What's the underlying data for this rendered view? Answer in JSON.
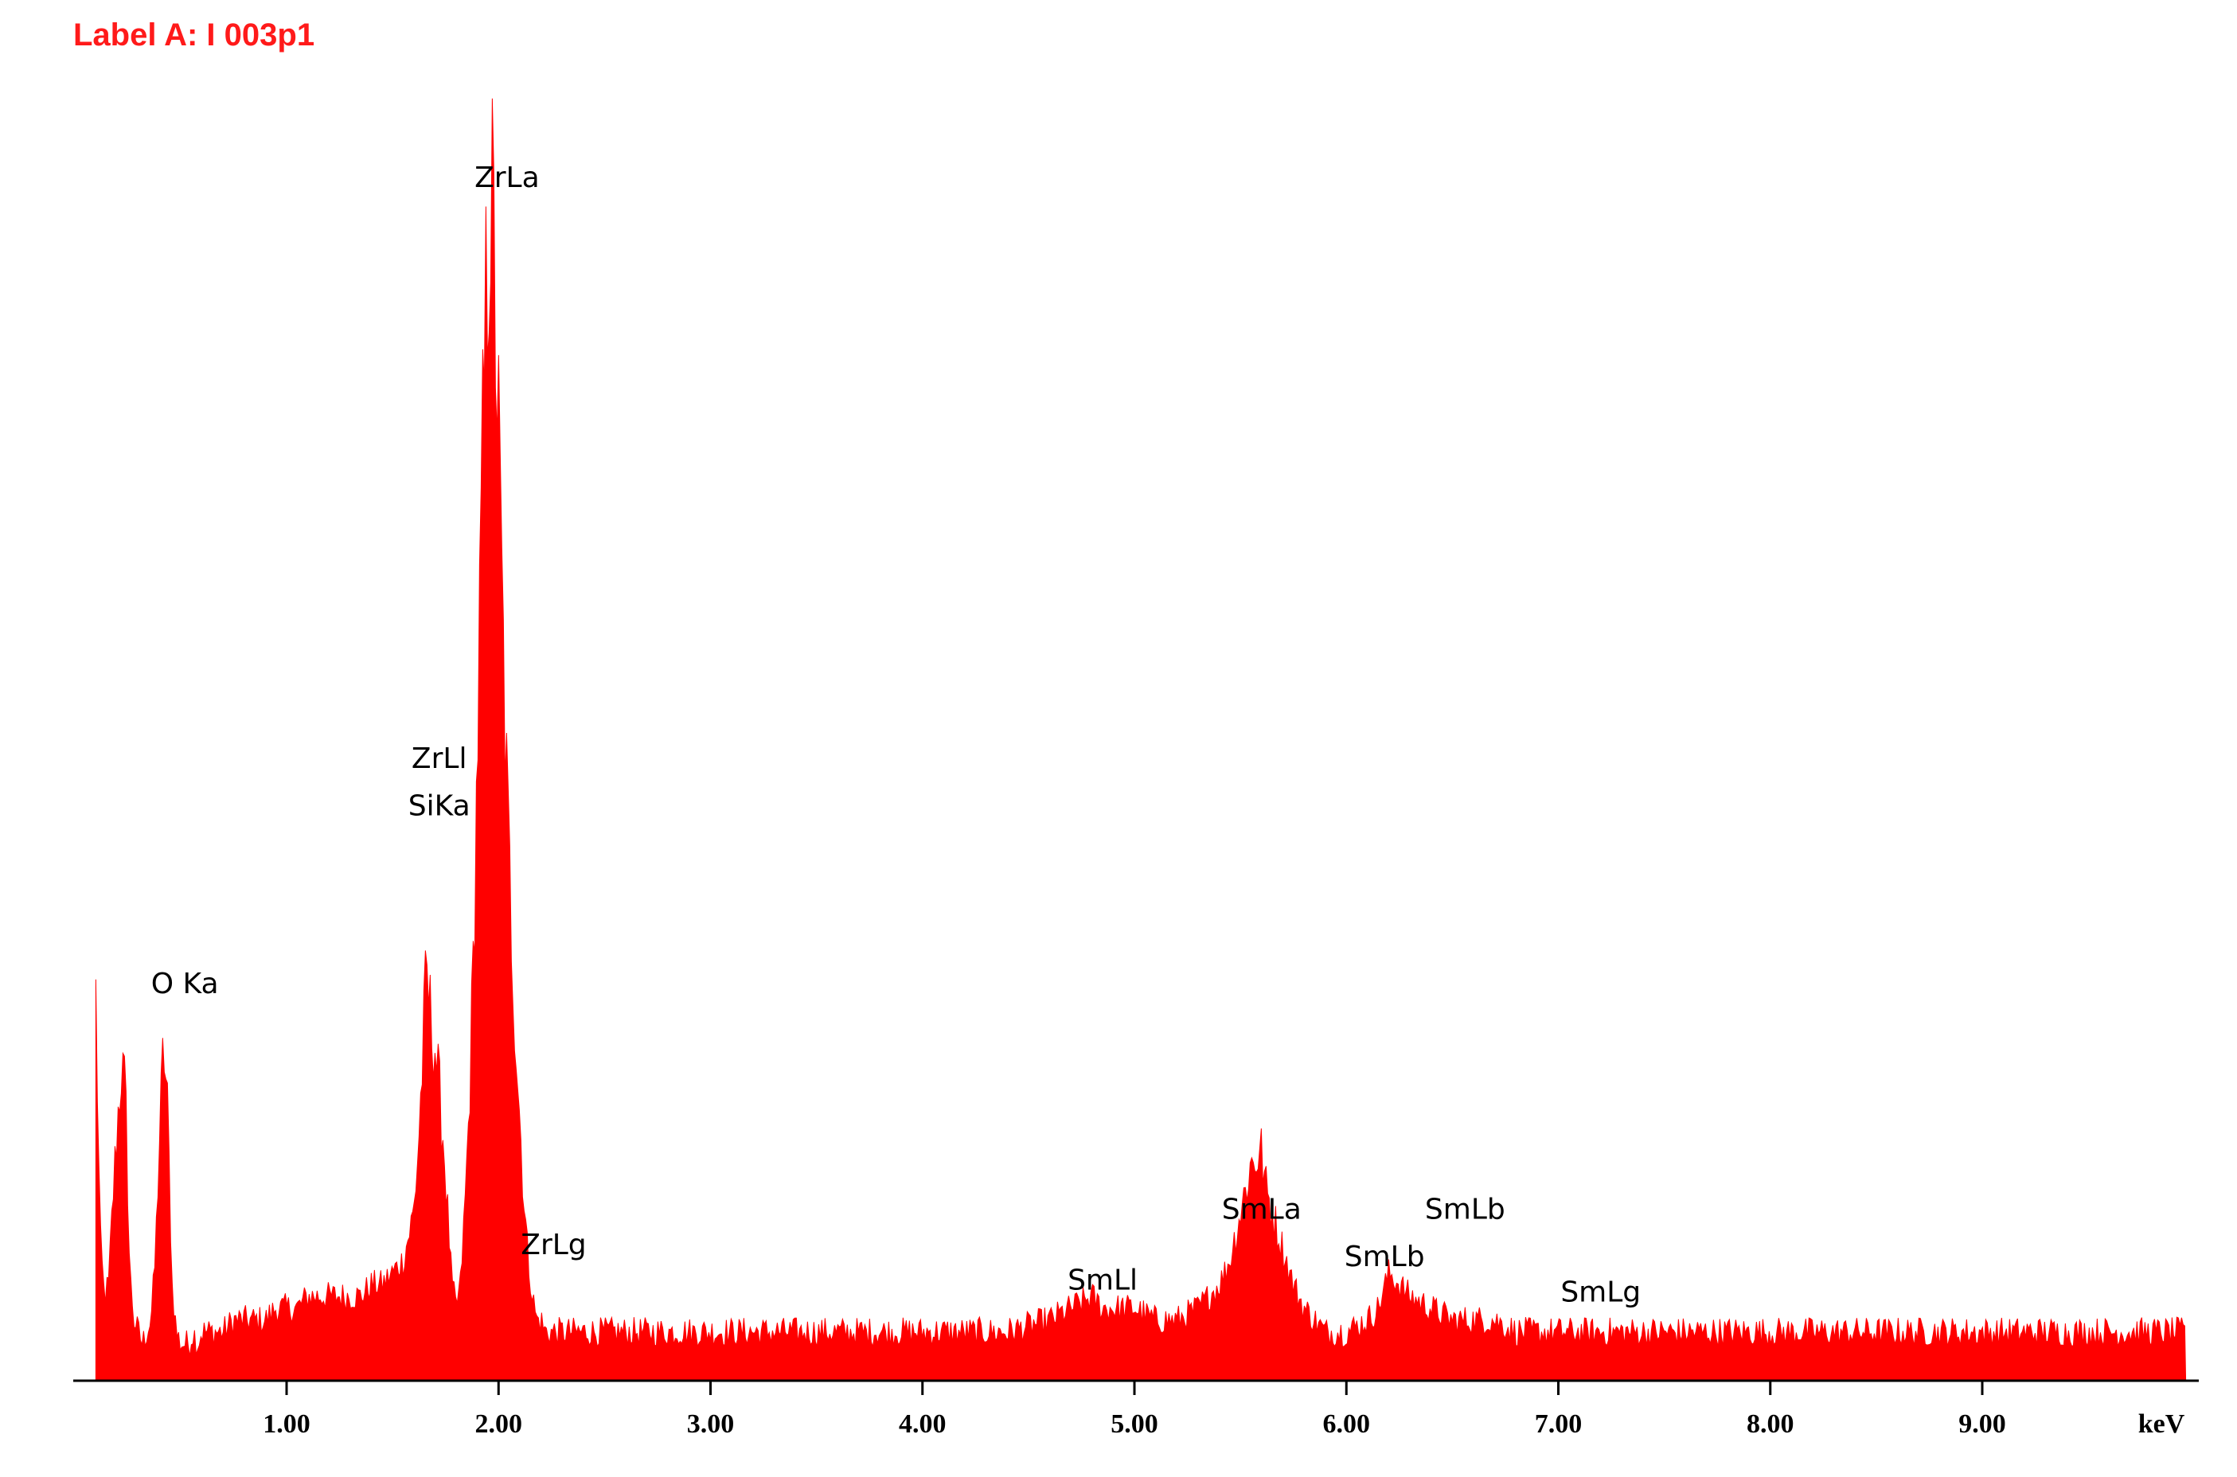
{
  "spectrum_label": "Label A: I 003p1",
  "colors": {
    "spectrum": "#ff0000",
    "label_text": "#ff1a1a",
    "axis": "#000000",
    "text": "#000000"
  },
  "chart_data": {
    "type": "area",
    "title": "",
    "xlabel": "keV",
    "ylabel": "",
    "xlim": [
      0.0,
      10.0
    ],
    "ylim": [
      0,
      100
    ],
    "grid": false,
    "legend": "none",
    "x_ticks": [
      {
        "value": 1.0,
        "label": "1.00"
      },
      {
        "value": 2.0,
        "label": "2.00"
      },
      {
        "value": 3.0,
        "label": "3.00"
      },
      {
        "value": 4.0,
        "label": "4.00"
      },
      {
        "value": 5.0,
        "label": "5.00"
      },
      {
        "value": 6.0,
        "label": "6.00"
      },
      {
        "value": 7.0,
        "label": "7.00"
      },
      {
        "value": 8.0,
        "label": "8.00"
      },
      {
        "value": 9.0,
        "label": "9.00"
      }
    ],
    "x_unit_label": "keV",
    "series": [
      {
        "x": [
          0.1,
          0.12,
          0.14,
          0.16,
          0.18,
          0.2,
          0.22,
          0.24,
          0.26,
          0.28,
          0.3,
          0.32,
          0.34,
          0.36,
          0.38,
          0.4,
          0.42,
          0.44,
          0.46,
          0.48,
          0.5,
          0.52,
          0.54,
          0.56,
          0.58,
          0.6,
          0.65,
          0.7,
          0.75,
          0.8,
          0.85,
          0.9,
          0.95,
          1.0,
          1.05,
          1.1,
          1.15,
          1.2,
          1.25,
          1.3,
          1.35,
          1.4,
          1.45,
          1.5,
          1.55,
          1.6,
          1.62,
          1.64,
          1.66,
          1.68,
          1.7,
          1.72,
          1.74,
          1.76,
          1.78,
          1.8,
          1.82,
          1.84,
          1.86,
          1.88,
          1.9,
          1.92,
          1.94,
          1.96,
          1.98,
          2.0,
          2.02,
          2.04,
          2.06,
          2.08,
          2.1,
          2.12,
          2.14,
          2.16,
          2.18,
          2.2,
          2.22,
          2.24,
          2.26,
          2.28,
          2.3,
          2.35,
          2.4,
          2.5,
          2.6,
          2.7,
          2.8,
          2.9,
          3.0,
          3.2,
          3.4,
          3.6,
          3.8,
          4.0,
          4.2,
          4.4,
          4.6,
          4.7,
          4.8,
          4.85,
          4.9,
          5.0,
          5.1,
          5.2,
          5.3,
          5.4,
          5.45,
          5.5,
          5.55,
          5.6,
          5.62,
          5.65,
          5.7,
          5.75,
          5.8,
          5.9,
          6.0,
          6.1,
          6.15,
          6.2,
          6.25,
          6.3,
          6.4,
          6.5,
          6.6,
          6.7,
          6.8,
          6.9,
          7.0,
          7.1,
          7.2,
          7.4,
          7.6,
          7.8,
          8.0,
          8.2,
          8.4,
          8.6,
          8.8,
          9.0,
          9.2,
          9.4,
          9.6,
          9.8,
          9.96
        ],
        "y": [
          32,
          12,
          7,
          8,
          15,
          21,
          26,
          24,
          9,
          5,
          4,
          3,
          4,
          5,
          10,
          20,
          28,
          22,
          8,
          4,
          3,
          3,
          3,
          4,
          3,
          4,
          4,
          4,
          5,
          5,
          5,
          5,
          6,
          6,
          6,
          7,
          7,
          7,
          7,
          7,
          7,
          8,
          8,
          9,
          10,
          14,
          19,
          26,
          34,
          30,
          28,
          24,
          20,
          14,
          8,
          6,
          8,
          14,
          22,
          34,
          52,
          72,
          88,
          100,
          92,
          78,
          62,
          48,
          38,
          29,
          22,
          15,
          10,
          7,
          5,
          5,
          4,
          4,
          4,
          4,
          4,
          4,
          4,
          4,
          4,
          4,
          4,
          4,
          4,
          4,
          4,
          4,
          4,
          4,
          4,
          4,
          5,
          6,
          7,
          6,
          6,
          6,
          5,
          5,
          6,
          8,
          10,
          14,
          18,
          19,
          16,
          14,
          11,
          8,
          6,
          4,
          4,
          5,
          6,
          9,
          8,
          7,
          6,
          5,
          5,
          5,
          4,
          4,
          4,
          4,
          4,
          4,
          4,
          4,
          4,
          4,
          4,
          4,
          4,
          4,
          4,
          4,
          4,
          4,
          4
        ]
      }
    ],
    "peak_labels": [
      {
        "text": "O Ka",
        "x": 0.52,
        "y": 32
      },
      {
        "text": "ZrLl",
        "x": 1.72,
        "y": 51
      },
      {
        "text": "SiKa",
        "x": 1.72,
        "y": 47
      },
      {
        "text": "ZrLa",
        "x": 2.04,
        "y": 100
      },
      {
        "text": "ZrLg",
        "x": 2.26,
        "y": 10
      },
      {
        "text": "SmLl",
        "x": 4.85,
        "y": 7
      },
      {
        "text": "SmLa",
        "x": 5.6,
        "y": 13
      },
      {
        "text": "SmLb",
        "x": 6.18,
        "y": 9
      },
      {
        "text": "SmLb",
        "x": 6.56,
        "y": 13
      },
      {
        "text": "SmLg",
        "x": 7.2,
        "y": 6
      }
    ]
  }
}
